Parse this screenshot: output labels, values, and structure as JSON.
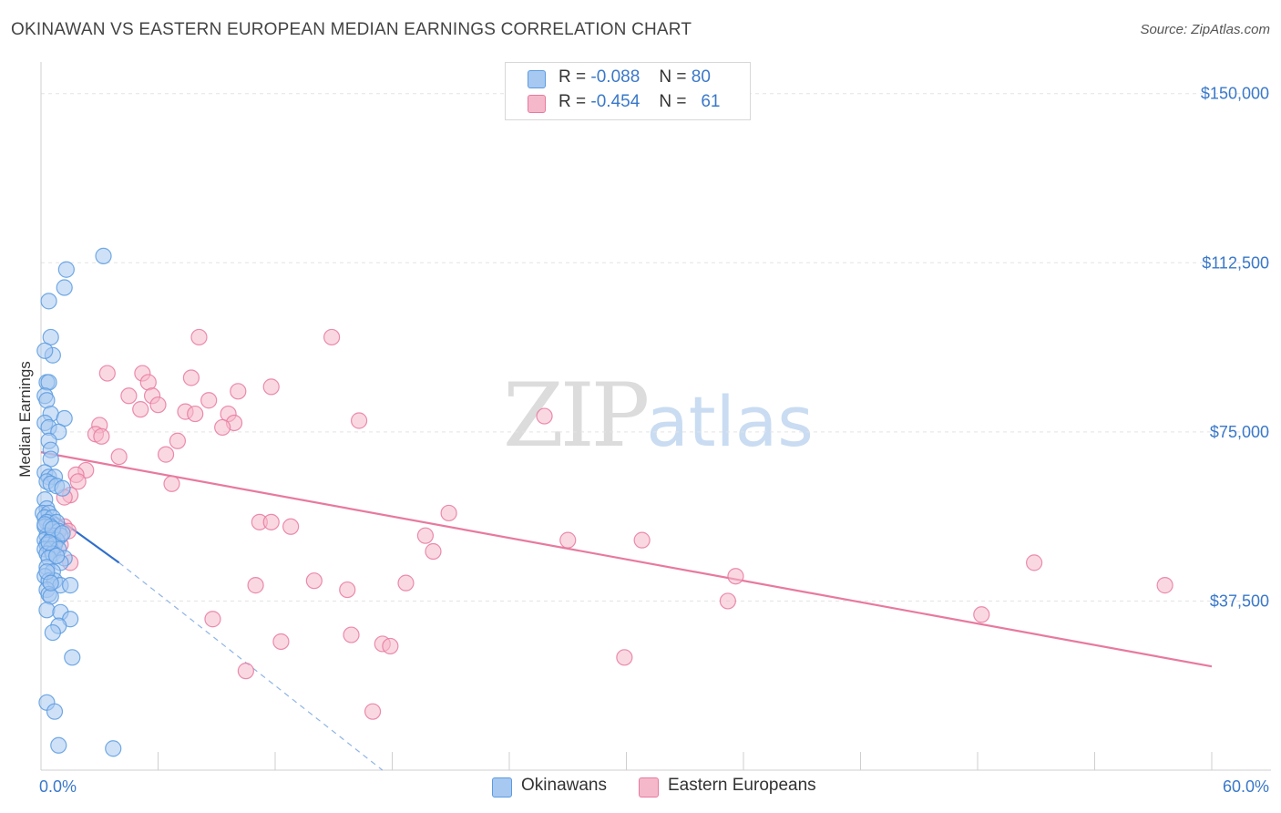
{
  "header": {
    "title": "OKINAWAN VS EASTERN EUROPEAN MEDIAN EARNINGS CORRELATION CHART",
    "source": "Source: ZipAtlas.com"
  },
  "watermark": {
    "zip": "ZIP",
    "atlas": "atlas"
  },
  "stats": [
    {
      "r_label": "R =",
      "r_value": "-0.088",
      "n_label": "N =",
      "n_value": "80",
      "color": "#a7c8f0"
    },
    {
      "r_label": "R =",
      "r_value": "-0.454",
      "n_label": "N =",
      "n_value": "61",
      "color": "#f5b8cb"
    }
  ],
  "legend": {
    "okinawans": "Okinawans",
    "eastern_europeans": "Eastern Europeans"
  },
  "chart_data": {
    "type": "scatter",
    "title": "OKINAWAN VS EASTERN EUROPEAN MEDIAN EARNINGS CORRELATION CHART",
    "xlabel": "",
    "ylabel": "Median Earnings",
    "xlim": [
      0,
      60
    ],
    "ylim": [
      0,
      155000
    ],
    "x_tick_labels": [
      "0.0%",
      "60.0%"
    ],
    "y_ticks": [
      37500,
      75000,
      112500,
      150000
    ],
    "y_tick_labels": [
      "$37,500",
      "$75,000",
      "$112,500",
      "$150,000"
    ],
    "grid": true,
    "series": [
      {
        "name": "Okinawans",
        "color": "#5b9be0",
        "fill": "#a7c8f0",
        "points": [
          [
            3.2,
            114000
          ],
          [
            1.3,
            111000
          ],
          [
            1.2,
            107000
          ],
          [
            0.4,
            104000
          ],
          [
            0.5,
            96000
          ],
          [
            0.6,
            92000
          ],
          [
            0.2,
            93000
          ],
          [
            0.3,
            86000
          ],
          [
            0.4,
            86000
          ],
          [
            0.2,
            83000
          ],
          [
            0.3,
            82000
          ],
          [
            0.5,
            79000
          ],
          [
            1.2,
            78000
          ],
          [
            0.2,
            77000
          ],
          [
            0.4,
            76000
          ],
          [
            0.9,
            75000
          ],
          [
            0.4,
            73000
          ],
          [
            0.5,
            71000
          ],
          [
            0.5,
            69000
          ],
          [
            0.2,
            66000
          ],
          [
            0.4,
            65000
          ],
          [
            0.7,
            65000
          ],
          [
            0.3,
            64000
          ],
          [
            0.5,
            63500
          ],
          [
            0.8,
            63000
          ],
          [
            1.1,
            62500
          ],
          [
            0.2,
            60000
          ],
          [
            0.3,
            58000
          ],
          [
            0.1,
            57000
          ],
          [
            0.4,
            57000
          ],
          [
            0.2,
            56000
          ],
          [
            0.6,
            56000
          ],
          [
            0.3,
            55000
          ],
          [
            0.8,
            55000
          ],
          [
            0.2,
            54000
          ],
          [
            0.5,
            54000
          ],
          [
            0.9,
            53000
          ],
          [
            0.3,
            52000
          ],
          [
            0.6,
            52000
          ],
          [
            1.0,
            52000
          ],
          [
            0.2,
            51000
          ],
          [
            0.5,
            51000
          ],
          [
            0.8,
            51000
          ],
          [
            0.3,
            50000
          ],
          [
            0.7,
            50000
          ],
          [
            0.2,
            49000
          ],
          [
            0.5,
            49000
          ],
          [
            0.9,
            49000
          ],
          [
            0.3,
            48000
          ],
          [
            0.6,
            48000
          ],
          [
            1.2,
            47000
          ],
          [
            0.4,
            47000
          ],
          [
            1.0,
            46000
          ],
          [
            0.3,
            45000
          ],
          [
            0.6,
            44000
          ],
          [
            0.2,
            43000
          ],
          [
            0.4,
            42000
          ],
          [
            0.7,
            42000
          ],
          [
            1.0,
            41000
          ],
          [
            1.5,
            41000
          ],
          [
            0.3,
            40000
          ],
          [
            0.4,
            39000
          ],
          [
            0.5,
            38500
          ],
          [
            0.3,
            35500
          ],
          [
            1.0,
            35000
          ],
          [
            1.5,
            33500
          ],
          [
            0.9,
            32000
          ],
          [
            0.6,
            30500
          ],
          [
            1.6,
            25000
          ],
          [
            0.3,
            15000
          ],
          [
            0.7,
            13000
          ],
          [
            0.9,
            5500
          ],
          [
            3.7,
            4800
          ],
          [
            0.2,
            54500
          ],
          [
            0.6,
            53500
          ],
          [
            1.1,
            52500
          ],
          [
            0.4,
            50500
          ],
          [
            0.8,
            47500
          ],
          [
            0.3,
            44000
          ],
          [
            0.5,
            41500
          ]
        ],
        "trend": {
          "x": [
            0,
            4
          ],
          "y": [
            58500,
            46000
          ]
        },
        "trend_extended": {
          "x": [
            4,
            17.5
          ],
          "y": [
            46000,
            0
          ]
        }
      },
      {
        "name": "Eastern Europeans",
        "color": "#e8799f",
        "fill": "#f5b8cb",
        "points": [
          [
            8.1,
            96000
          ],
          [
            14.9,
            96000
          ],
          [
            3.4,
            88000
          ],
          [
            5.2,
            88000
          ],
          [
            7.7,
            87000
          ],
          [
            5.5,
            86000
          ],
          [
            11.8,
            85000
          ],
          [
            10.1,
            84000
          ],
          [
            5.7,
            83000
          ],
          [
            4.5,
            83000
          ],
          [
            8.6,
            82000
          ],
          [
            6.0,
            81000
          ],
          [
            5.1,
            80000
          ],
          [
            7.4,
            79500
          ],
          [
            7.9,
            79000
          ],
          [
            9.6,
            79000
          ],
          [
            9.9,
            77000
          ],
          [
            16.3,
            77500
          ],
          [
            25.8,
            78500
          ],
          [
            9.3,
            76000
          ],
          [
            3.0,
            76500
          ],
          [
            2.8,
            74500
          ],
          [
            3.1,
            74000
          ],
          [
            7.0,
            73000
          ],
          [
            6.4,
            70000
          ],
          [
            4.0,
            69500
          ],
          [
            2.3,
            66500
          ],
          [
            1.8,
            65500
          ],
          [
            1.9,
            64000
          ],
          [
            6.7,
            63500
          ],
          [
            1.5,
            61000
          ],
          [
            1.2,
            60500
          ],
          [
            20.9,
            57000
          ],
          [
            11.2,
            55000
          ],
          [
            11.8,
            55000
          ],
          [
            12.8,
            54000
          ],
          [
            1.2,
            54000
          ],
          [
            1.4,
            53000
          ],
          [
            19.7,
            52000
          ],
          [
            27.0,
            51000
          ],
          [
            30.8,
            51000
          ],
          [
            1.0,
            50000
          ],
          [
            20.1,
            48500
          ],
          [
            1.5,
            46000
          ],
          [
            50.9,
            46000
          ],
          [
            35.6,
            43000
          ],
          [
            14.0,
            42000
          ],
          [
            18.7,
            41500
          ],
          [
            11.0,
            41000
          ],
          [
            15.7,
            40000
          ],
          [
            57.6,
            41000
          ],
          [
            35.2,
            37500
          ],
          [
            48.2,
            34500
          ],
          [
            8.8,
            33500
          ],
          [
            15.9,
            30000
          ],
          [
            12.3,
            28500
          ],
          [
            17.5,
            28000
          ],
          [
            17.9,
            27500
          ],
          [
            29.9,
            25000
          ],
          [
            10.5,
            22000
          ],
          [
            17.0,
            13000
          ]
        ],
        "trend": {
          "x": [
            0,
            60
          ],
          "y": [
            70500,
            23000
          ]
        }
      }
    ]
  }
}
